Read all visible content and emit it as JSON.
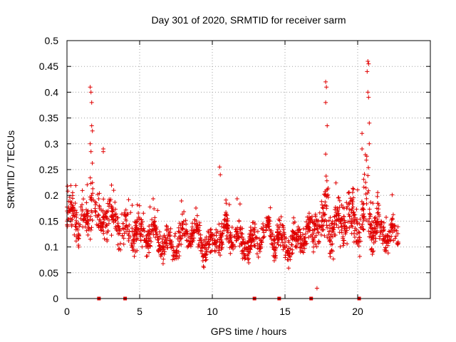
{
  "chart_data": {
    "type": "scatter",
    "title": "Day 301 of 2020, SRMTID for receiver sarm",
    "xlabel": "GPS time / hours",
    "ylabel": "SRMTID / TECUs",
    "xlim": [
      0,
      25
    ],
    "ylim": [
      0,
      0.5
    ],
    "xticks": [
      0,
      5,
      10,
      15,
      20
    ],
    "yticks": [
      0,
      0.05,
      0.1,
      0.15,
      0.2,
      0.25,
      0.3,
      0.35,
      0.4,
      0.45,
      0.5
    ],
    "xtick_labels": [
      "0",
      "5",
      "10",
      "15",
      "20"
    ],
    "ytick_labels": [
      "0",
      "0.05",
      "0.1",
      "0.15",
      "0.2",
      "0.25",
      "0.3",
      "0.35",
      "0.4",
      "0.45",
      "0.5"
    ],
    "grid": true,
    "marker": "+",
    "color": "#e00000",
    "data_span_hours": [
      0,
      22.8
    ],
    "baseline_median": 0.115,
    "gap_markers_x": [
      2.2,
      4.0,
      12.9,
      14.6,
      16.8,
      20.1
    ],
    "peaks": [
      {
        "x": 1.6,
        "y": 0.41
      },
      {
        "x": 1.65,
        "y": 0.4
      },
      {
        "x": 1.7,
        "y": 0.38
      },
      {
        "x": 1.7,
        "y": 0.335
      },
      {
        "x": 1.75,
        "y": 0.325
      },
      {
        "x": 1.6,
        "y": 0.3
      },
      {
        "x": 1.65,
        "y": 0.285
      },
      {
        "x": 2.5,
        "y": 0.29
      },
      {
        "x": 2.5,
        "y": 0.285
      },
      {
        "x": 10.5,
        "y": 0.255
      },
      {
        "x": 10.55,
        "y": 0.24
      },
      {
        "x": 17.8,
        "y": 0.42
      },
      {
        "x": 17.85,
        "y": 0.41
      },
      {
        "x": 17.8,
        "y": 0.38
      },
      {
        "x": 17.9,
        "y": 0.335
      },
      {
        "x": 17.8,
        "y": 0.28
      },
      {
        "x": 20.7,
        "y": 0.46
      },
      {
        "x": 20.75,
        "y": 0.455
      },
      {
        "x": 20.65,
        "y": 0.44
      },
      {
        "x": 20.7,
        "y": 0.4
      },
      {
        "x": 20.75,
        "y": 0.39
      },
      {
        "x": 20.8,
        "y": 0.34
      },
      {
        "x": 20.3,
        "y": 0.32
      },
      {
        "x": 20.8,
        "y": 0.3
      },
      {
        "x": 20.3,
        "y": 0.29
      },
      {
        "x": 17.2,
        "y": 0.02
      }
    ]
  }
}
